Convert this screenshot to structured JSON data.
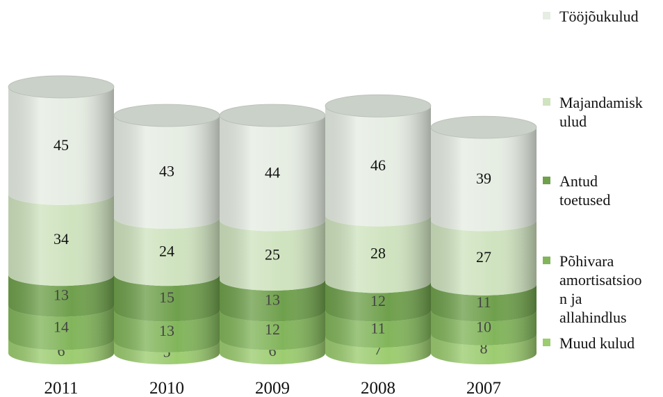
{
  "chart_data": {
    "type": "bar",
    "stacked": true,
    "shape": "cylinder",
    "categories": [
      "2011",
      "2010",
      "2009",
      "2008",
      "2007"
    ],
    "series": [
      {
        "name": "Muud kulud",
        "values": [
          6,
          5,
          6,
          7,
          8
        ],
        "color": "#9ccc70"
      },
      {
        "name": "Põhivara amortisatsioon ja allahindlus",
        "values": [
          14,
          13,
          12,
          11,
          10
        ],
        "color": "#82b55b"
      },
      {
        "name": "Antud toetused",
        "values": [
          13,
          15,
          13,
          12,
          11
        ],
        "color": "#6fa04c"
      },
      {
        "name": "Majandamiskulud",
        "values": [
          34,
          24,
          25,
          28,
          27
        ],
        "color": "#cfe3bf"
      },
      {
        "name": "Tööjõukulud",
        "values": [
          45,
          43,
          44,
          46,
          39
        ],
        "color": "#e6ede3"
      }
    ],
    "legend": {
      "position": "right",
      "order": [
        "Tööjõukulud",
        "Majandamiskulud",
        "Antud toetused",
        "Põhivara amortisatsioon ja allahindlus",
        "Muud kulud"
      ],
      "lines": [
        [
          "Tööjõukulud"
        ],
        [
          "Majandamisk",
          "ulud"
        ],
        [
          "Antud",
          "toetused"
        ],
        [
          "Põhivara",
          "amortisatsioo",
          "n ja",
          "allahindlus"
        ],
        [
          "Muud kulud"
        ]
      ]
    },
    "grid": false,
    "title": "",
    "xlabel": "",
    "ylabel": ""
  }
}
